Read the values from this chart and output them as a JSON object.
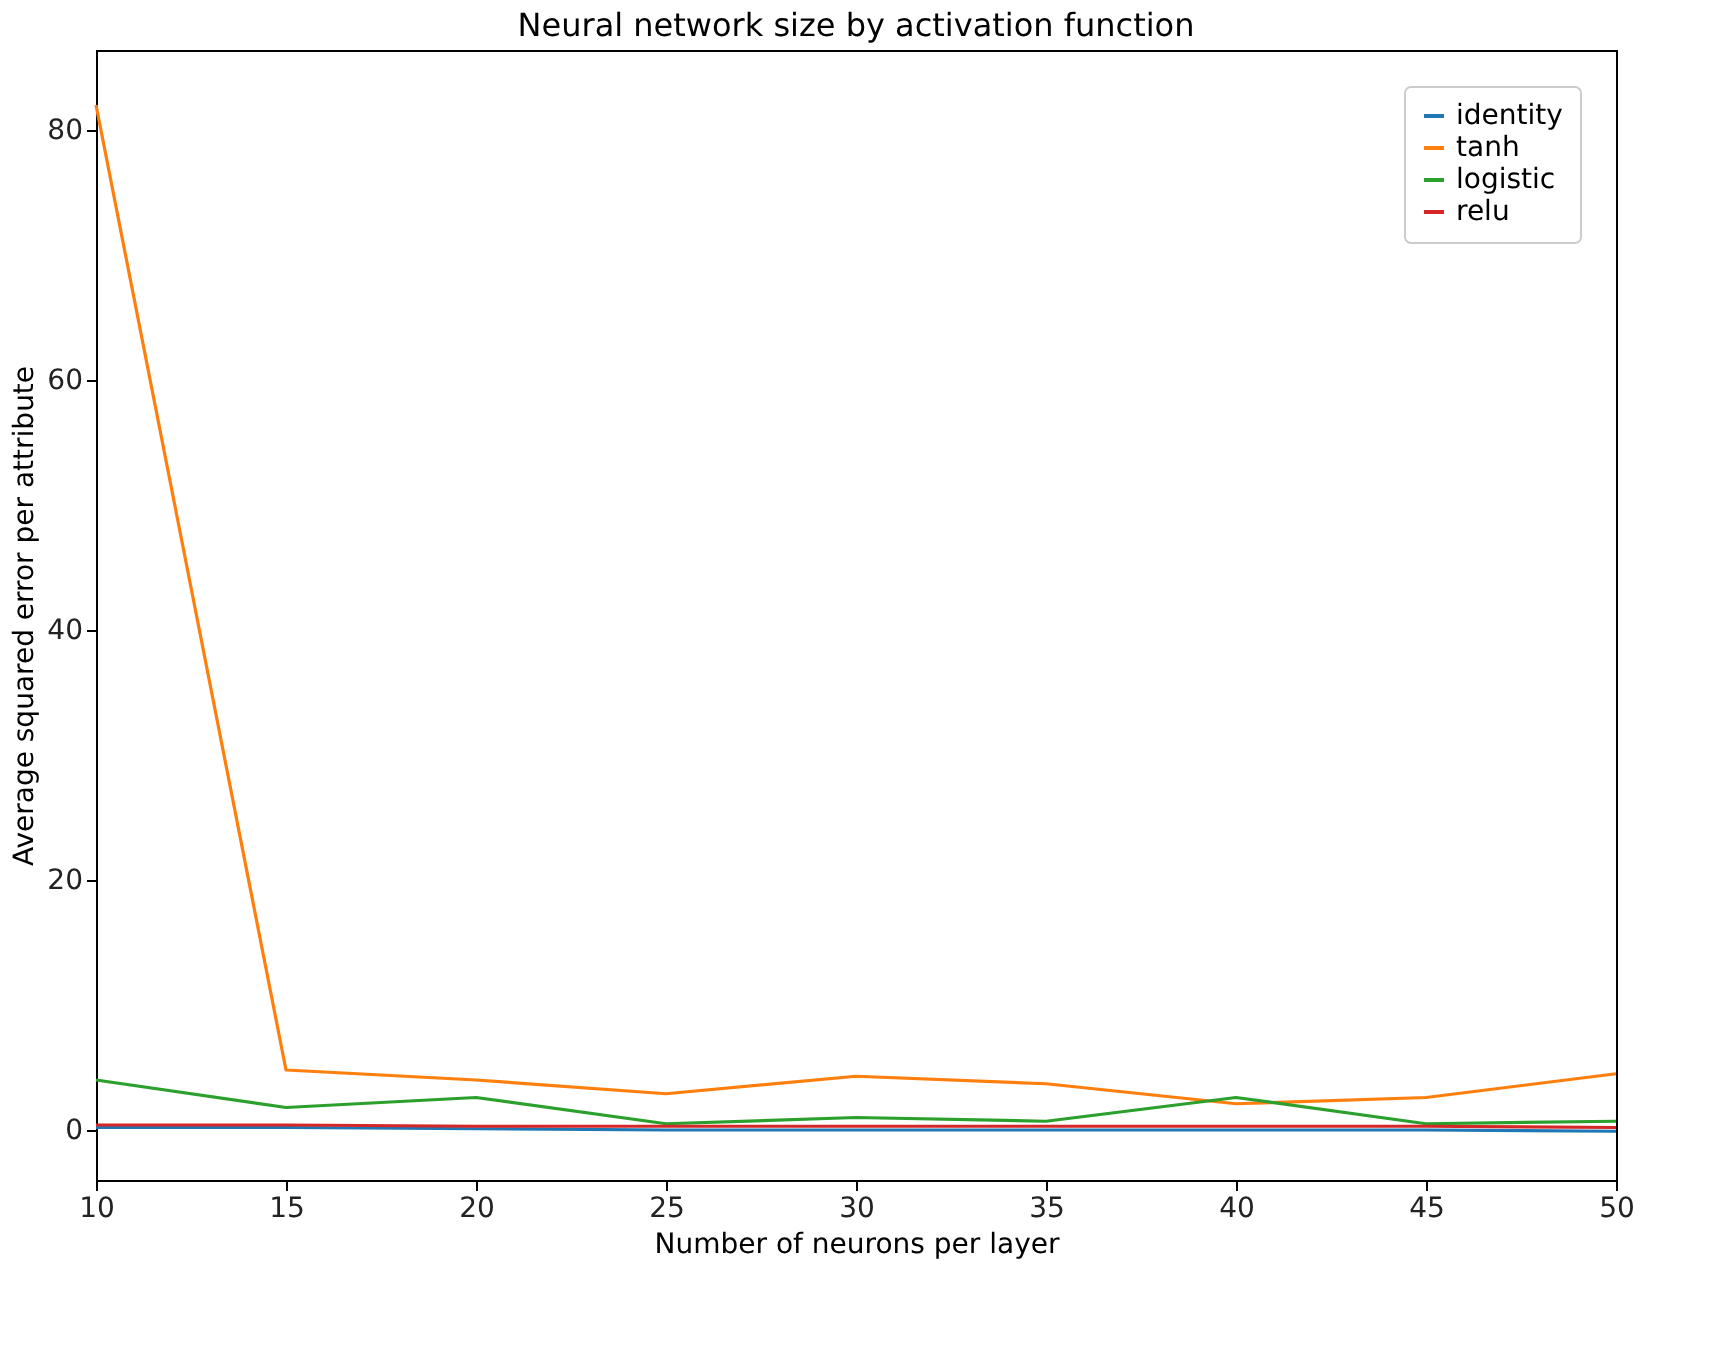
{
  "chart_data": {
    "type": "line",
    "title": "Neural network size by activation function",
    "xlabel": "Number of neurons per layer",
    "ylabel": "Average squared error per attribute",
    "x": [
      10,
      15,
      20,
      25,
      30,
      35,
      40,
      45,
      50
    ],
    "series": [
      {
        "name": "identity",
        "color": "#1f77b4",
        "values": [
          0.2,
          0.2,
          0.1,
          0.0,
          0.0,
          0.0,
          0.0,
          0.0,
          -0.1
        ]
      },
      {
        "name": "tanh",
        "color": "#ff7f0e",
        "values": [
          82,
          4.8,
          4.0,
          2.9,
          4.3,
          3.7,
          2.1,
          2.6,
          4.5
        ]
      },
      {
        "name": "logistic",
        "color": "#2ca02c",
        "values": [
          4.0,
          1.8,
          2.6,
          0.5,
          1.0,
          0.7,
          2.6,
          0.5,
          0.7
        ]
      },
      {
        "name": "relu",
        "color": "#d62728",
        "values": [
          0.4,
          0.4,
          0.3,
          0.3,
          0.3,
          0.3,
          0.3,
          0.3,
          0.2
        ]
      }
    ],
    "xlim": [
      10,
      50
    ],
    "xticks": [
      10,
      15,
      20,
      25,
      30,
      35,
      40,
      45,
      50
    ],
    "ylim": [
      -4,
      86.4
    ],
    "yticks": [
      0,
      20,
      40,
      60,
      80
    ],
    "grid": false,
    "legend": "top right",
    "marker": "none",
    "line_style": "solid"
  }
}
